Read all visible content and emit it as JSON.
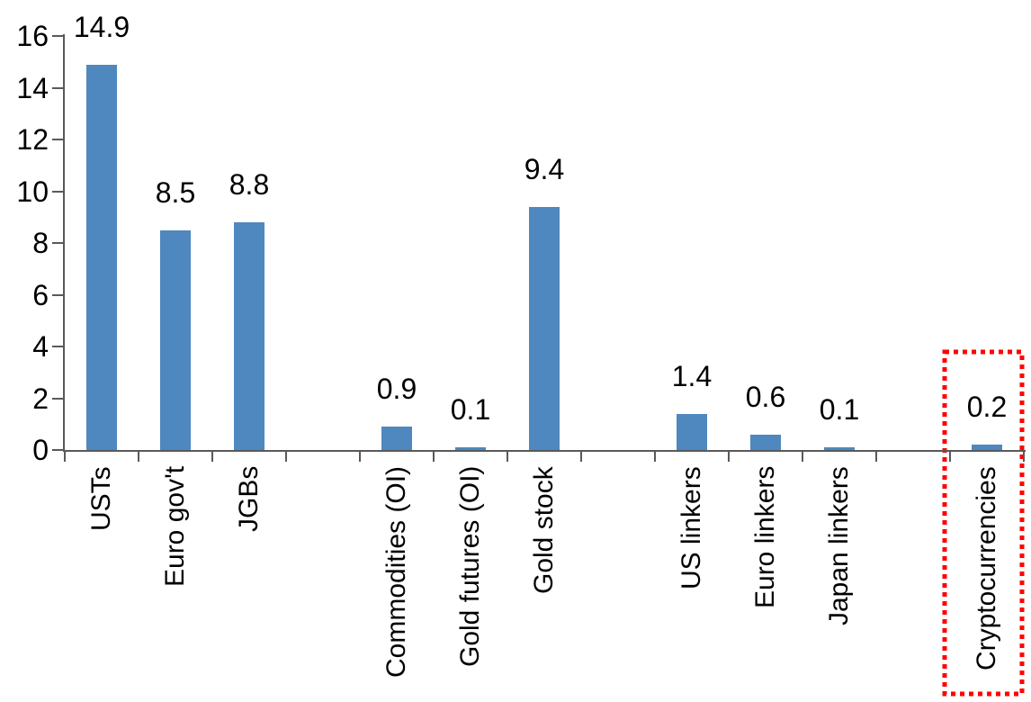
{
  "chart_data": {
    "type": "bar",
    "categories": [
      "USTs",
      "Euro gov't",
      "JGBs",
      "Commodities (OI)",
      "Gold futures (OI)",
      "Gold stock",
      "US linkers",
      "Euro linkers",
      "Japan linkers",
      "Cryptocurrencies"
    ],
    "values": [
      14.9,
      8.5,
      8.8,
      0.9,
      0.1,
      9.4,
      1.4,
      0.6,
      0.1,
      0.2
    ],
    "value_labels": [
      "14.9",
      "8.5",
      "8.8",
      "0.9",
      "0.1",
      "9.4",
      "1.4",
      "0.6",
      "0.1",
      "0.2"
    ],
    "title": "",
    "xlabel": "",
    "ylabel": "",
    "ylim": [
      0,
      16
    ],
    "yticks": [
      0,
      2,
      4,
      6,
      8,
      10,
      12,
      14,
      16
    ],
    "grid": false,
    "legend": null,
    "bar_color": "#4E88BE",
    "axis_color": "#595959",
    "text_color": "#000000",
    "highlight": {
      "category": "Cryptocurrencies",
      "shape": "dotted-rectangle",
      "color": "#FF0000"
    },
    "layout_hints": {
      "slots": [
        0,
        1,
        2,
        4,
        5,
        6,
        8,
        9,
        10,
        12
      ],
      "total_slots": 13,
      "bar_orientation": "vertical",
      "category_label_rotation_deg": 90,
      "legend_position": "none"
    }
  }
}
